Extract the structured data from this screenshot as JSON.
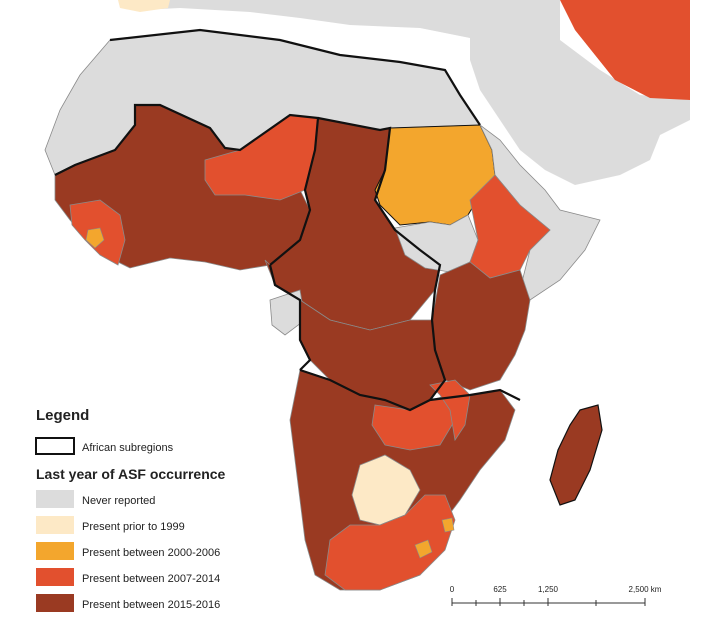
{
  "colors": {
    "background": "#ffffff",
    "never": "#dcdcdc",
    "prior1999": "#fde9c6",
    "c2000_2006": "#f3a62d",
    "c2007_2014": "#e2502e",
    "c2015_2016": "#9a3a22",
    "border": "#111111",
    "thin_border": "#8a8a8a"
  },
  "legend": {
    "title": "Legend",
    "subregions_label": "African subregions",
    "occurrence_title": "Last year of ASF occurrence",
    "items": [
      {
        "label": "Never reported",
        "color": "#dcdcdc"
      },
      {
        "label": "Present prior to 1999",
        "color": "#fde9c6"
      },
      {
        "label": "Present between 2000-2006",
        "color": "#f3a62d"
      },
      {
        "label": "Present between 2007-2014",
        "color": "#e2502e"
      },
      {
        "label": "Present between 2015-2016",
        "color": "#9a3a22"
      }
    ]
  },
  "scale_bar": {
    "ticks": [
      "0",
      "625",
      "1,250",
      "2,500 km"
    ]
  }
}
